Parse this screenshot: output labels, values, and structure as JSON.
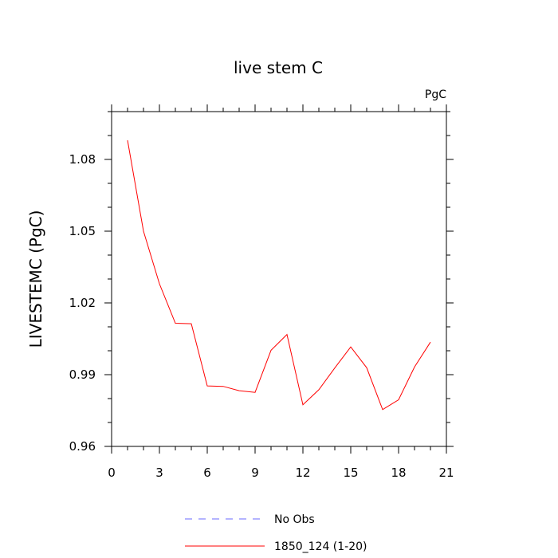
{
  "chart_data": {
    "type": "line",
    "title": "live stem C",
    "units_label": "PgC",
    "xlabel": "",
    "ylabel": "LIVESTEMC  (PgC)",
    "xlim": [
      0,
      21
    ],
    "ylim": [
      0.96,
      1.1
    ],
    "x_ticks": [
      0,
      3,
      6,
      9,
      12,
      15,
      18,
      21
    ],
    "x_tick_labels": [
      "0",
      "3",
      "6",
      "9",
      "12",
      "15",
      "18",
      "21"
    ],
    "y_ticks": [
      0.96,
      0.99,
      1.02,
      1.05,
      1.08
    ],
    "y_tick_labels": [
      "0.96",
      "0.99",
      "1.02",
      "1.05",
      "1.08"
    ],
    "grid": false,
    "legend_position": "bottom",
    "series": [
      {
        "name": "1850_124 (1-20)",
        "color": "#ff0000",
        "style": "solid",
        "x": [
          1,
          2,
          3,
          4,
          5,
          6,
          7,
          8,
          9,
          10,
          11,
          12,
          13,
          14,
          15,
          16,
          17,
          18,
          19,
          20
        ],
        "y": [
          1.088,
          1.05,
          1.028,
          1.0115,
          1.0113,
          0.9853,
          0.9851,
          0.9833,
          0.9826,
          1.0002,
          1.0068,
          0.9774,
          0.9837,
          0.9928,
          1.0016,
          0.9929,
          0.9754,
          0.9795,
          0.9932,
          1.0036
        ]
      }
    ],
    "legend": [
      {
        "label": "No Obs",
        "color": "#6a6aff",
        "style": "dashed"
      },
      {
        "label": "1850_124 (1-20)",
        "color": "#ff0000",
        "style": "solid"
      }
    ]
  }
}
